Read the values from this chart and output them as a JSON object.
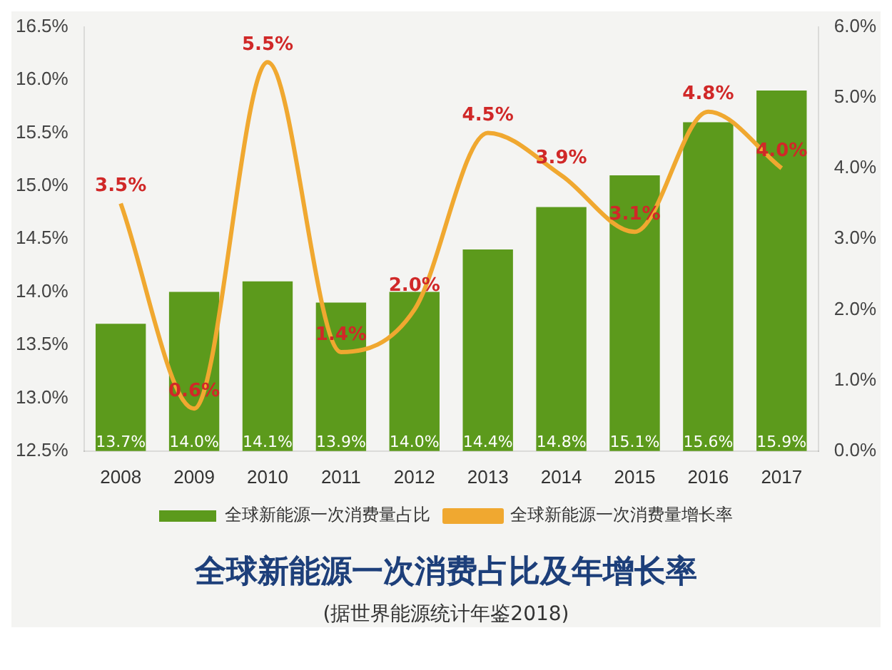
{
  "chart_data": {
    "type": "bar",
    "title": "全球新能源一次消费占比及年增长率",
    "subtitle": "(据世界能源统计年鉴2018)",
    "categories": [
      "2008",
      "2009",
      "2010",
      "2011",
      "2012",
      "2013",
      "2014",
      "2015",
      "2016",
      "2017"
    ],
    "series": [
      {
        "name": "全球新能源一次消费量占比",
        "color": "#5c9a1c",
        "values": [
          13.7,
          14.0,
          14.1,
          13.9,
          14.0,
          14.4,
          14.8,
          15.1,
          15.6,
          15.9
        ],
        "value_labels": [
          "13.7%",
          "14.0%",
          "14.1%",
          "13.9%",
          "14.0%",
          "14.4%",
          "14.8%",
          "15.1%",
          "15.6%",
          "15.9%"
        ]
      },
      {
        "name": "全球新能源一次消费量增长率",
        "type": "line",
        "axis": "y2",
        "color": "#f0a830",
        "values": [
          3.5,
          0.6,
          5.5,
          1.4,
          2.0,
          4.5,
          3.9,
          3.1,
          4.8,
          4.0
        ],
        "value_labels": [
          "3.5%",
          "0.6%",
          "5.5%",
          "1.4%",
          "2.0%",
          "4.5%",
          "3.9%",
          "3.1%",
          "4.8%",
          "4.0%"
        ]
      }
    ],
    "ylim": [
      12.5,
      16.5
    ],
    "yticks": [
      {
        "value": 12.5,
        "label": "12.5%"
      },
      {
        "value": 13,
        "label": "13.0%"
      },
      {
        "value": 13.5,
        "label": "13.5%"
      },
      {
        "value": 14,
        "label": "14.0%"
      },
      {
        "value": 14.5,
        "label": "14.5%"
      },
      {
        "value": 15,
        "label": "15.0%"
      },
      {
        "value": 15.5,
        "label": "15.5%"
      },
      {
        "value": 16,
        "label": "16.0%"
      },
      {
        "value": 16.5,
        "label": "16.5%"
      }
    ],
    "y2lim": [
      0,
      6
    ],
    "y2ticks": [
      {
        "value": 0,
        "label": "0.0%"
      },
      {
        "value": 1,
        "label": "1.0%"
      },
      {
        "value": 2,
        "label": "2.0%"
      },
      {
        "value": 3,
        "label": "3.0%"
      },
      {
        "value": 4,
        "label": "4.0%"
      },
      {
        "value": 5,
        "label": "5.0%"
      },
      {
        "value": 6,
        "label": "6.0%"
      }
    ],
    "grid": false,
    "legend": "bottom",
    "marker": "none",
    "line_style": "solid"
  }
}
